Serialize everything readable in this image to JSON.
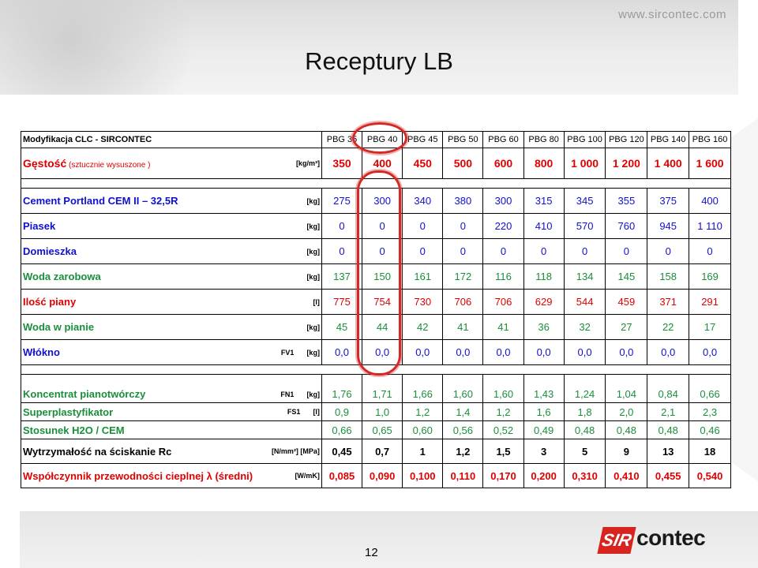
{
  "website": "www.sircontec.com",
  "title": "Receptury LB",
  "page_number": "12",
  "logo": {
    "sir": "SIR",
    "contec": "contec"
  },
  "table": {
    "header_label": "Modyfikacja CLC -  SIRCONTEC",
    "columns": [
      "PBG 35",
      "PBG 40",
      "PBG 45",
      "PBG 50",
      "PBG 60",
      "PBG 80",
      "PBG 100",
      "PBG 120",
      "PBG 140",
      "PBG 160"
    ],
    "gestosc": {
      "label": "Gęstość",
      "sub": " (sztucznie wysuszone )",
      "unit": "[kg/m³]",
      "values": [
        "350",
        "400",
        "450",
        "500",
        "600",
        "800",
        "1 000",
        "1 200",
        "1 400",
        "1 600"
      ]
    },
    "rows1": [
      {
        "label": "Cement Portland CEM II – 32,5R",
        "unit": "[kg]",
        "code": "",
        "color": "blue",
        "values": [
          "275",
          "300",
          "340",
          "380",
          "300",
          "315",
          "345",
          "355",
          "375",
          "400"
        ]
      },
      {
        "label": "Piasek",
        "unit": "[kg]",
        "code": "",
        "color": "blue",
        "values": [
          "0",
          "0",
          "0",
          "0",
          "220",
          "410",
          "570",
          "760",
          "945",
          "1 110"
        ]
      },
      {
        "label": "Domieszka",
        "unit": "[kg]",
        "code": "",
        "color": "blue",
        "values": [
          "0",
          "0",
          "0",
          "0",
          "0",
          "0",
          "0",
          "0",
          "0",
          "0"
        ]
      },
      {
        "label": "Woda zarobowa",
        "unit": "[kg]",
        "code": "",
        "color": "green",
        "values": [
          "137",
          "150",
          "161",
          "172",
          "116",
          "118",
          "134",
          "145",
          "158",
          "169"
        ]
      },
      {
        "label": "Ilość piany",
        "unit": "[l]",
        "code": "",
        "color": "red",
        "values": [
          "775",
          "754",
          "730",
          "706",
          "706",
          "629",
          "544",
          "459",
          "371",
          "291"
        ]
      },
      {
        "label": "Woda w pianie",
        "unit": "[kg]",
        "code": "",
        "color": "green",
        "values": [
          "45",
          "44",
          "42",
          "41",
          "41",
          "36",
          "32",
          "27",
          "22",
          "17"
        ]
      },
      {
        "label": "Włókno",
        "unit": "[kg]",
        "code": "FV1",
        "color": "blue",
        "values": [
          "0,0",
          "0,0",
          "0,0",
          "0,0",
          "0,0",
          "0,0",
          "0,0",
          "0,0",
          "0,0",
          "0,0"
        ]
      }
    ],
    "rows2": [
      {
        "label": "Koncentrat pianotwórczy",
        "unit": "[kg]",
        "code": "FN1",
        "color": "green",
        "values": [
          "1,76",
          "1,71",
          "1,66",
          "1,60",
          "1,60",
          "1,43",
          "1,24",
          "1,04",
          "0,84",
          "0,66"
        ]
      },
      {
        "label": "Superplastyfikator",
        "unit": "[l]",
        "code": "FS1",
        "color": "green",
        "values": [
          "0,9",
          "1,0",
          "1,2",
          "1,4",
          "1,2",
          "1,6",
          "1,8",
          "2,0",
          "2,1",
          "2,3"
        ]
      },
      {
        "label": "Stosunek H2O / CEM",
        "unit": "",
        "code": "",
        "color": "green",
        "values": [
          "0,66",
          "0,65",
          "0,60",
          "0,56",
          "0,52",
          "0,49",
          "0,48",
          "0,48",
          "0,48",
          "0,46"
        ]
      }
    ],
    "wytrzymalosc": {
      "label": "Wytrzymałość na ściskanie Rc",
      "unit": "[N/mm²]  [MPa]",
      "color": "black",
      "values": [
        "0,45",
        "0,7",
        "1",
        "1,2",
        "1,5",
        "3",
        "5",
        "9",
        "13",
        "18"
      ]
    },
    "wspolczynnik": {
      "label": "Współczynnik przewodności cieplnej λ",
      "sub": " (średni)",
      "unit": "[W/mK]",
      "color": "red",
      "values": [
        "0,085",
        "0,090",
        "0,100",
        "0,110",
        "0,170",
        "0,200",
        "0,310",
        "0,410",
        "0,455",
        "0,540"
      ]
    }
  }
}
